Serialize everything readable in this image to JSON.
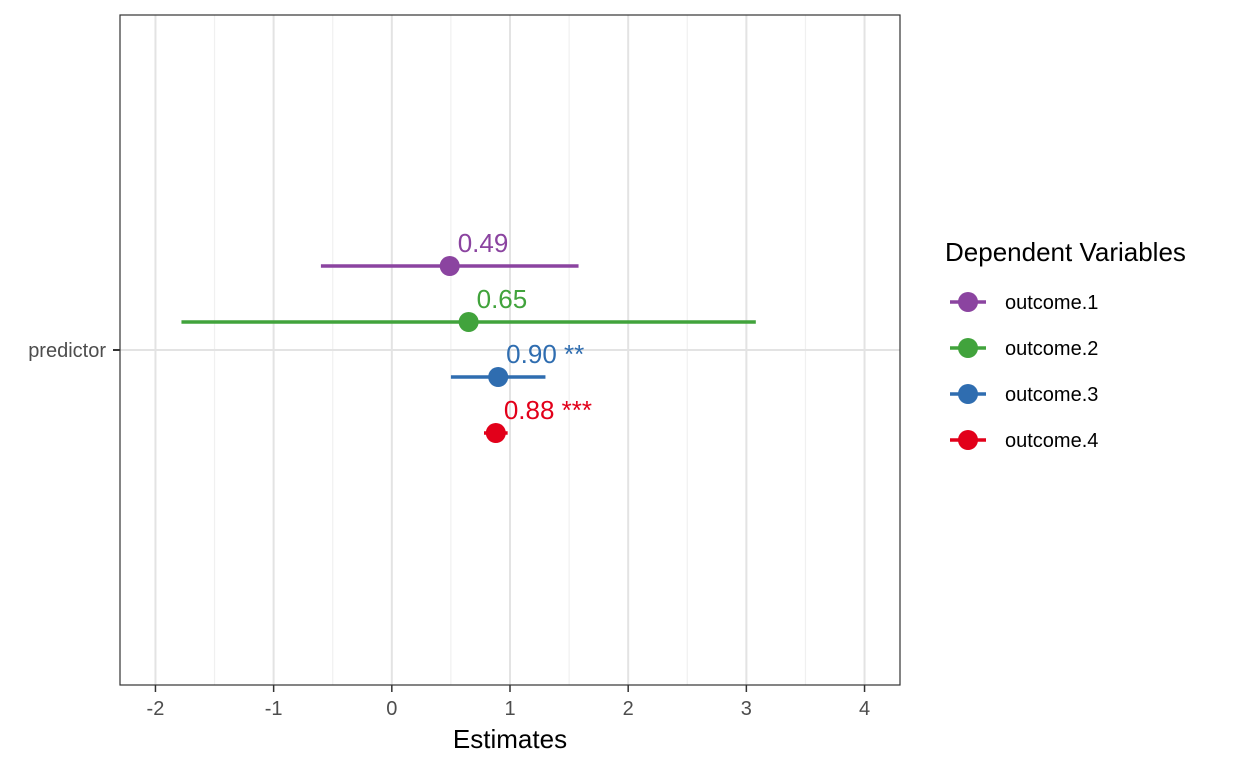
{
  "chart_data": {
    "type": "scatter",
    "subtype": "coefficient-forest-plot",
    "title": "",
    "xlabel": "Estimates",
    "ylabel": "",
    "xlim": [
      -2.3,
      4.3
    ],
    "x_ticks": [
      -2,
      -1,
      0,
      1,
      2,
      3,
      4
    ],
    "x_tick_labels": [
      "-2",
      "-1",
      "0",
      "1",
      "2",
      "3",
      "4"
    ],
    "y_categories": [
      "predictor"
    ],
    "grid": true,
    "legend": {
      "title": "Dependent Variables",
      "placement": "right"
    },
    "series": [
      {
        "name": "outcome.1",
        "color": "#8B44A0",
        "estimate": 0.49,
        "ci_low": -0.6,
        "ci_high": 1.58,
        "label": "0.49",
        "stars": ""
      },
      {
        "name": "outcome.2",
        "color": "#41A33C",
        "estimate": 0.65,
        "ci_low": -1.78,
        "ci_high": 3.08,
        "label": "0.65",
        "stars": ""
      },
      {
        "name": "outcome.3",
        "color": "#2F6DB0",
        "estimate": 0.9,
        "ci_low": 0.5,
        "ci_high": 1.3,
        "label": "0.90",
        "stars": "**"
      },
      {
        "name": "outcome.4",
        "color": "#E2001A",
        "estimate": 0.88,
        "ci_low": 0.78,
        "ci_high": 0.98,
        "label": "0.88",
        "stars": "***"
      }
    ]
  }
}
